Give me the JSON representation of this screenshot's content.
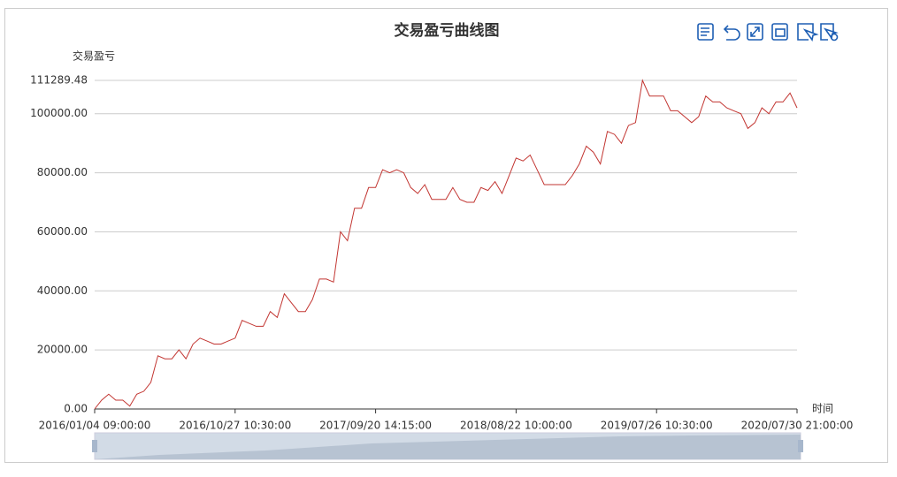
{
  "chart_data": {
    "type": "line",
    "title": "交易盈亏曲线图",
    "y_axis_label": "交易盈亏",
    "x_axis_label": "时间",
    "color": "#c23531",
    "grid": true,
    "categories": [
      "2016/01/04 09:00:00",
      null,
      null,
      null,
      null,
      null,
      null,
      null,
      null,
      null,
      null,
      null,
      null,
      null,
      null,
      null,
      null,
      null,
      null,
      null,
      "2016/10/27 10:30:00",
      null,
      null,
      null,
      null,
      null,
      null,
      null,
      null,
      null,
      null,
      null,
      null,
      null,
      null,
      null,
      null,
      null,
      null,
      null,
      "2017/09/20 14:15:00",
      null,
      null,
      null,
      null,
      null,
      null,
      null,
      null,
      null,
      null,
      null,
      null,
      null,
      null,
      null,
      null,
      null,
      null,
      null,
      "2018/08/22 10:00:00",
      null,
      null,
      null,
      null,
      null,
      null,
      null,
      null,
      null,
      null,
      null,
      null,
      null,
      null,
      null,
      null,
      null,
      null,
      null,
      "2019/07/26 10:30:00",
      null,
      null,
      null,
      null,
      null,
      null,
      null,
      null,
      null,
      null,
      null,
      null,
      null,
      null,
      null,
      null,
      null,
      null,
      null,
      "2020/07/30 21:00:00"
    ],
    "values": [
      0,
      3000,
      5000,
      3000,
      3000,
      1000,
      5000,
      6000,
      9000,
      18000,
      17000,
      17000,
      20000,
      17000,
      22000,
      24000,
      23000,
      22000,
      22000,
      23000,
      24000,
      30000,
      29000,
      28000,
      28000,
      33000,
      31000,
      39000,
      36000,
      33000,
      33000,
      37000,
      44000,
      44000,
      43000,
      60000,
      57000,
      68000,
      68000,
      75000,
      75000,
      81000,
      80000,
      81000,
      80000,
      75000,
      73000,
      76000,
      71000,
      71000,
      71000,
      75000,
      71000,
      70000,
      70000,
      75000,
      74000,
      77000,
      73000,
      79000,
      85000,
      84000,
      86000,
      81000,
      76000,
      76000,
      76000,
      76000,
      79000,
      83000,
      89000,
      87000,
      83000,
      94000,
      93000,
      90000,
      96000,
      97000,
      111289.48,
      106000,
      106000,
      106000,
      101000,
      101000,
      99000,
      97000,
      99000,
      106000,
      104000,
      104000,
      102000,
      101000,
      100000,
      95000,
      97000,
      102000,
      100000,
      104000,
      104000,
      107000,
      102000
    ],
    "ylim": [
      0,
      111289.48
    ],
    "yticks": [
      {
        "value": 0,
        "label": "0.00"
      },
      {
        "value": 20000,
        "label": "20000.00"
      },
      {
        "value": 40000,
        "label": "40000.00"
      },
      {
        "value": 60000,
        "label": "60000.00"
      },
      {
        "value": 80000,
        "label": "80000.00"
      },
      {
        "value": 100000,
        "label": "100000.00"
      },
      {
        "value": 111289.48,
        "label": "111289.48"
      }
    ]
  }
}
